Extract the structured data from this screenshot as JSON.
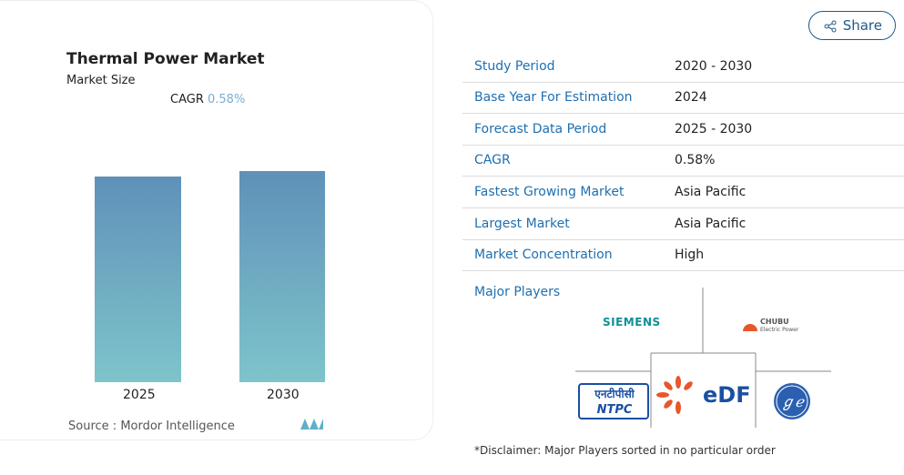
{
  "header": {
    "title": "Thermal Power Market",
    "subtitle": "Market Size",
    "cagr_label": "CAGR",
    "cagr_value": "0.58%"
  },
  "chart": {
    "categories": [
      "2025",
      "2030"
    ]
  },
  "source": {
    "label": "Source :",
    "name": "Mordor Intelligence"
  },
  "share": "Share",
  "table": {
    "rows": [
      [
        "Study Period",
        "2020 - 2030"
      ],
      [
        "Base Year For Estimation",
        "2024"
      ],
      [
        "Forecast Data Period",
        "2025 - 2030"
      ],
      [
        "CAGR",
        "0.58%"
      ],
      [
        "Fastest Growing Market",
        "Asia Pacific"
      ],
      [
        "Largest Market",
        "Asia Pacific"
      ],
      [
        "Market Concentration",
        "High"
      ]
    ]
  },
  "major_players": {
    "title": "Major Players",
    "logos": {
      "siemens": "SIEMENS",
      "chubu": "CHUBU",
      "chubu_sub": "Electric Power",
      "ntpc_hindi": "एनटीपीसी",
      "ntpc": "NTPC",
      "edf": "eDF"
    }
  },
  "disclaimer": "*Disclaimer: Major Players sorted in no particular order"
}
